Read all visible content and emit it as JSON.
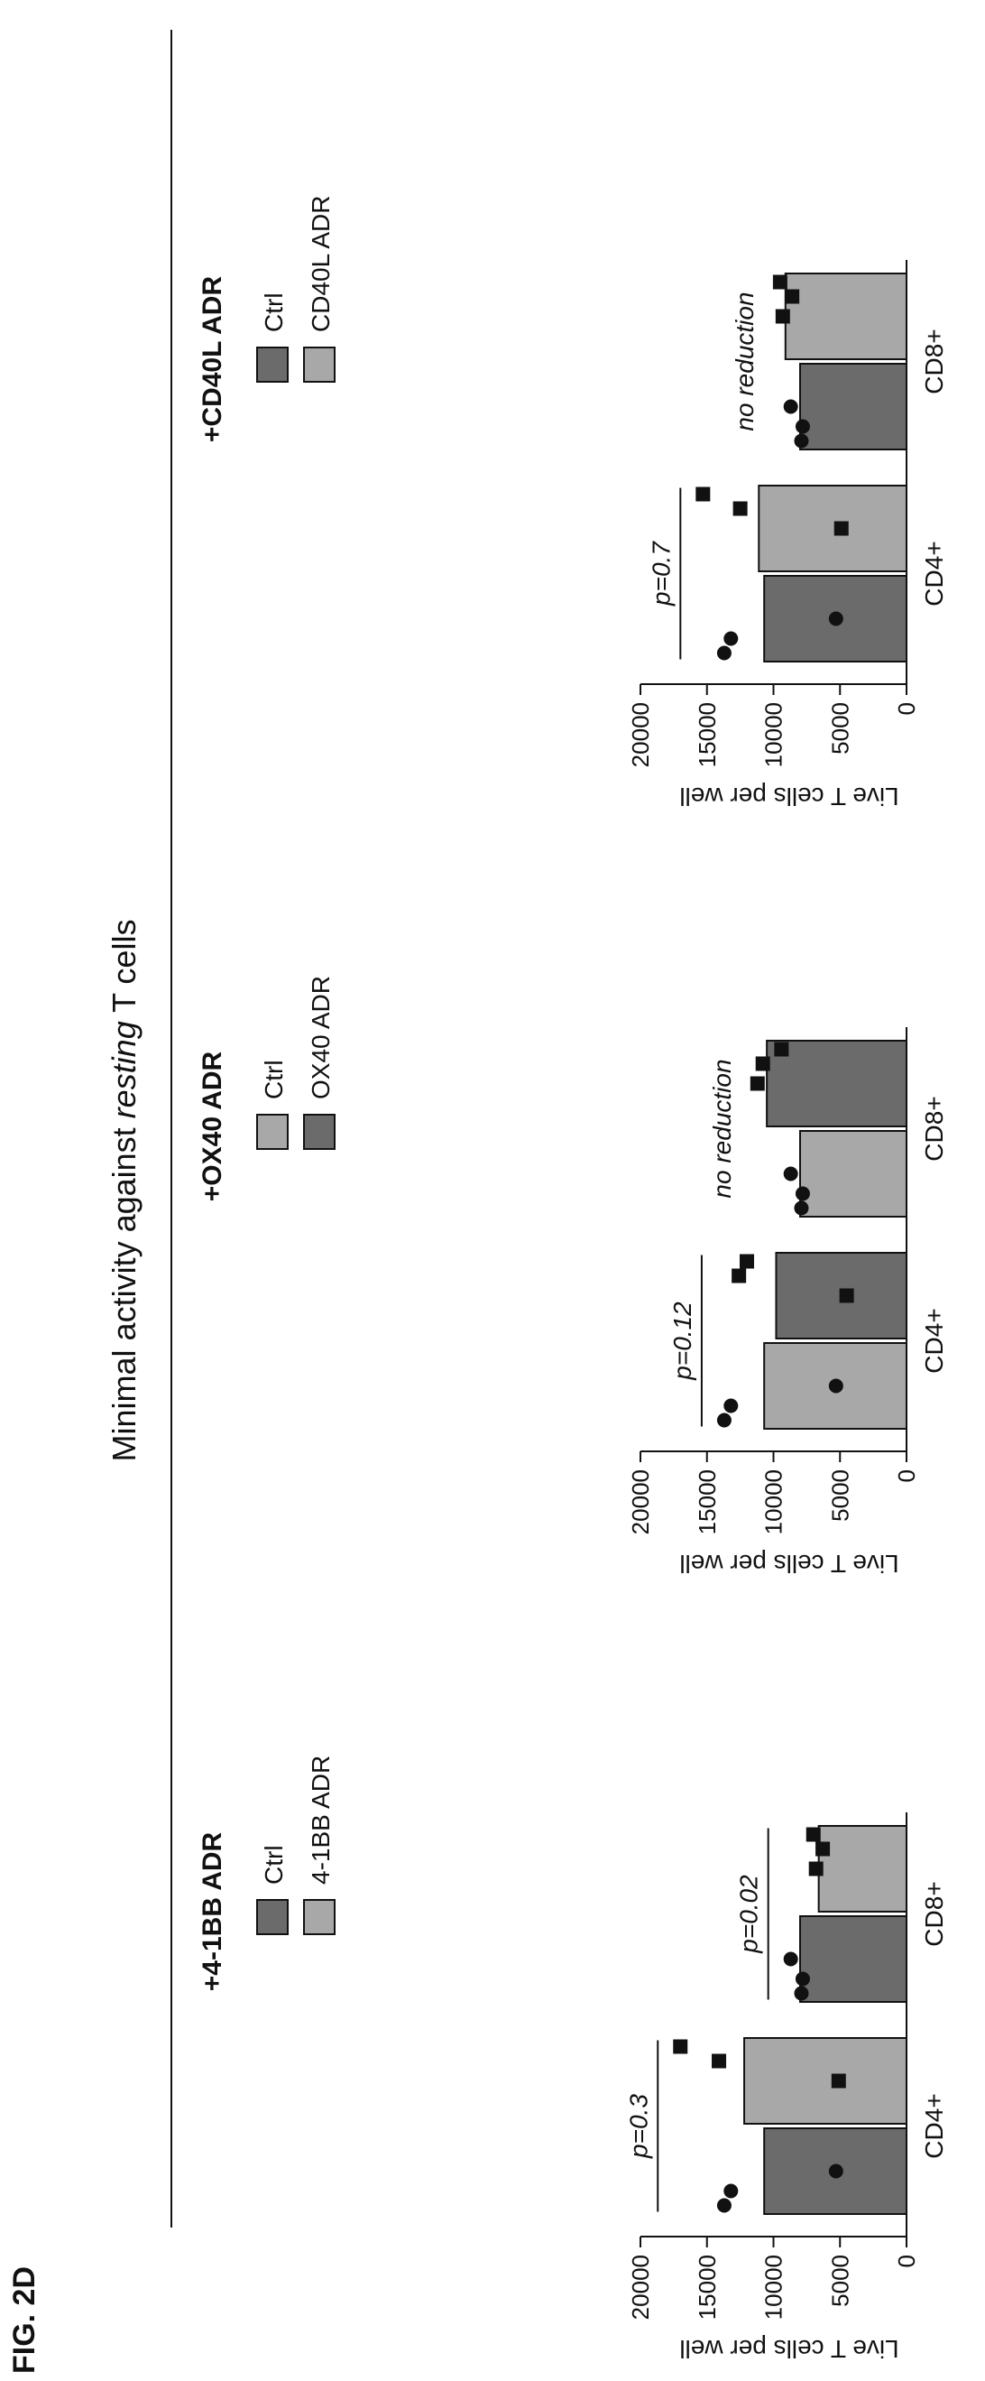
{
  "figure": {
    "label": "FIG. 2D",
    "title_prefix": "Minimal activity against ",
    "title_italic": "resting",
    "title_suffix": " T cells"
  },
  "colors": {
    "dark": "#6b6b6b",
    "light": "#a8a8a8",
    "point": "#111111"
  },
  "chart_data": [
    {
      "type": "bar",
      "title": "+4-1BB ADR",
      "ylabel": "Live T cells per well",
      "ylim": [
        0,
        20000
      ],
      "yticks": [
        0,
        5000,
        10000,
        15000,
        20000
      ],
      "categories": [
        "CD4+",
        "CD8+"
      ],
      "series": [
        {
          "name": "Ctrl",
          "color": "#6b6b6b",
          "values": [
            10700,
            8000
          ],
          "points": [
            [
              5300,
              13200,
              13700
            ],
            [
              8700,
              7800,
              7900
            ]
          ],
          "marker": "circle"
        },
        {
          "name": "4-1BB ADR",
          "color": "#a8a8a8",
          "values": [
            12200,
            6600
          ],
          "points": [
            [
              5100,
              14100,
              17000
            ],
            [
              6800,
              6300,
              7000
            ]
          ],
          "marker": "square"
        }
      ],
      "annotations": [
        "p=0.3",
        "p=0.02"
      ]
    },
    {
      "type": "bar",
      "title": "+OX40 ADR",
      "ylabel": "Live T cells per well",
      "ylim": [
        0,
        20000
      ],
      "yticks": [
        0,
        5000,
        10000,
        15000,
        20000
      ],
      "categories": [
        "CD4+",
        "CD8+"
      ],
      "series": [
        {
          "name": "Ctrl",
          "color": "#a8a8a8",
          "values": [
            10700,
            8000
          ],
          "points": [
            [
              5300,
              13200,
              13700
            ],
            [
              8700,
              7800,
              7900
            ]
          ],
          "marker": "circle"
        },
        {
          "name": "OX40 ADR",
          "color": "#6b6b6b",
          "values": [
            9800,
            10500
          ],
          "points": [
            [
              4500,
              12600,
              12000
            ],
            [
              11200,
              10800,
              9400
            ]
          ],
          "marker": "square"
        }
      ],
      "annotations": [
        "p=0.12",
        "no reduction"
      ]
    },
    {
      "type": "bar",
      "title": "+CD40L ADR",
      "ylabel": "Live T cells per well",
      "ylim": [
        0,
        20000
      ],
      "yticks": [
        0,
        5000,
        10000,
        15000,
        20000
      ],
      "categories": [
        "CD4+",
        "CD8+"
      ],
      "series": [
        {
          "name": "Ctrl",
          "color": "#6b6b6b",
          "values": [
            10700,
            8000
          ],
          "points": [
            [
              5300,
              13200,
              13700
            ],
            [
              8700,
              7800,
              7900
            ]
          ],
          "marker": "circle"
        },
        {
          "name": "CD40L ADR",
          "color": "#a8a8a8",
          "values": [
            11100,
            9100
          ],
          "points": [
            [
              4900,
              12500,
              15300
            ],
            [
              9300,
              8600,
              9500
            ]
          ],
          "marker": "square"
        }
      ],
      "annotations": [
        "p=0.7",
        "no reduction"
      ]
    }
  ]
}
